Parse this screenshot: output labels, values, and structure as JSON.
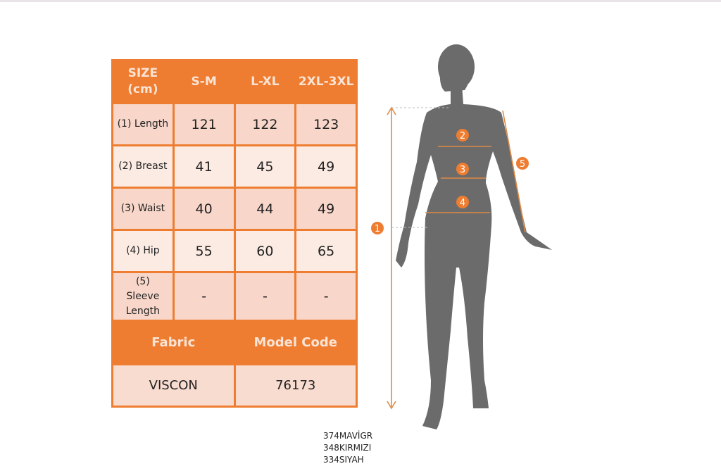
{
  "table": {
    "headers": [
      "SIZE (cm)",
      "S-M",
      "L-XL",
      "2XL-3XL"
    ],
    "rows": [
      {
        "label": "(1) Length",
        "values": [
          "121",
          "122",
          "123"
        ]
      },
      {
        "label": "(2) Breast",
        "values": [
          "41",
          "45",
          "49"
        ]
      },
      {
        "label": "(3) Waist",
        "values": [
          "40",
          "44",
          "49"
        ]
      },
      {
        "label": "(4) Hip",
        "values": [
          "55",
          "60",
          "65"
        ]
      },
      {
        "label": "(5) Sleeve Length",
        "values": [
          "-",
          "-",
          "-"
        ]
      }
    ],
    "fabric_label": "Fabric",
    "model_code_label": "Model Code",
    "fabric_value": "VISCON",
    "model_code_value": "76173"
  },
  "color_codes": [
    "374MAVİGR",
    "348KIRMIZI",
    "334SIYAH"
  ],
  "markers": [
    "1",
    "2",
    "3",
    "4",
    "5"
  ],
  "colors": {
    "accent": "#ee7d31",
    "silhouette": "#6b6b6b"
  }
}
